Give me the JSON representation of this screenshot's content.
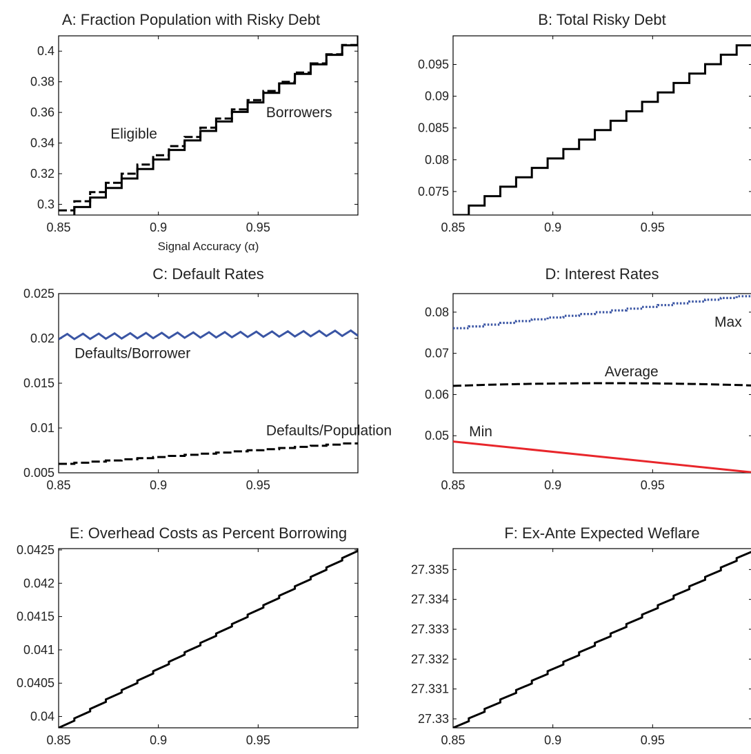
{
  "chart_data": [
    {
      "id": "A",
      "type": "line",
      "title": "A: Fraction Population with Risky Debt",
      "xlabel": "Signal Accuracy (α)",
      "ylabel": "",
      "xlim": [
        0.85,
        1.0
      ],
      "ylim": [
        0.293,
        0.41
      ],
      "xticks": [
        0.85,
        0.9,
        0.95
      ],
      "xtick_labels": [
        "0.85",
        "0.9",
        "0.95"
      ],
      "yticks": [
        0.3,
        0.32,
        0.34,
        0.36,
        0.38,
        0.4
      ],
      "ytick_labels": [
        "0.3",
        "0.32",
        "0.34",
        "0.36",
        "0.38",
        "0.4"
      ],
      "grid": false,
      "series": [
        {
          "name": "Eligible",
          "style": "dashed",
          "color": "#000000",
          "x": [
            0.85,
            1.0
          ],
          "y": [
            0.296,
            0.41
          ],
          "steps": 19
        },
        {
          "name": "Borrowers",
          "style": "solid",
          "color": "#000000",
          "x": [
            0.85,
            1.0
          ],
          "y": [
            0.292,
            0.41
          ],
          "steps": 19
        }
      ],
      "annotations": [
        {
          "text": "Eligible",
          "x": 0.876,
          "y": 0.343
        },
        {
          "text": "Borrowers",
          "x": 0.954,
          "y": 0.357
        }
      ]
    },
    {
      "id": "B",
      "type": "line",
      "title": "B: Total Risky Debt",
      "xlabel": "",
      "ylabel": "",
      "xlim": [
        0.85,
        1.0
      ],
      "ylim": [
        0.0713,
        0.0995
      ],
      "xticks": [
        0.85,
        0.9,
        0.95
      ],
      "xtick_labels": [
        "0.85",
        "0.9",
        "0.95"
      ],
      "yticks": [
        0.075,
        0.08,
        0.085,
        0.09,
        0.095
      ],
      "ytick_labels": [
        "0.075",
        "0.08",
        "0.085",
        "0.09",
        "0.095"
      ],
      "grid": false,
      "series": [
        {
          "name": "",
          "style": "solid",
          "color": "#000000",
          "x": [
            0.85,
            1.0
          ],
          "y": [
            0.0713,
            0.0995
          ],
          "steps": 19
        }
      ],
      "annotations": []
    },
    {
      "id": "C",
      "type": "line",
      "title": "C: Default Rates",
      "xlabel": "",
      "ylabel": "",
      "xlim": [
        0.85,
        1.0
      ],
      "ylim": [
        0.005,
        0.025
      ],
      "xticks": [
        0.85,
        0.9,
        0.95
      ],
      "xtick_labels": [
        "0.85",
        "0.9",
        "0.95"
      ],
      "yticks": [
        0.005,
        0.01,
        0.015,
        0.02,
        0.025
      ],
      "ytick_labels": [
        "0.005",
        "0.01",
        "0.015",
        "0.02",
        "0.025"
      ],
      "grid": false,
      "series": [
        {
          "name": "Defaults/Borrower",
          "style": "solid",
          "color": "#3a55a4",
          "x": [
            0.85,
            1.0
          ],
          "y": [
            0.0202,
            0.0206
          ],
          "sawtooth_amplitude": 0.0006,
          "steps": 19
        },
        {
          "name": "Defaults/Population",
          "style": "dashed",
          "color": "#000000",
          "x": [
            0.85,
            1.0
          ],
          "y": [
            0.006,
            0.0084
          ],
          "steps": 19
        }
      ],
      "annotations": [
        {
          "text": "Defaults/Borrower",
          "x": 0.858,
          "y": 0.0178
        },
        {
          "text": "Defaults/Population",
          "x": 0.954,
          "y": 0.0092
        }
      ]
    },
    {
      "id": "D",
      "type": "line",
      "title": "D: Interest Rates",
      "xlabel": "",
      "ylabel": "",
      "xlim": [
        0.85,
        1.0
      ],
      "ylim": [
        0.041,
        0.0845
      ],
      "xticks": [
        0.85,
        0.9,
        0.95
      ],
      "xtick_labels": [
        "0.85",
        "0.9",
        "0.95"
      ],
      "yticks": [
        0.05,
        0.06,
        0.07,
        0.08
      ],
      "ytick_labels": [
        "0.05",
        "0.06",
        "0.07",
        "0.08"
      ],
      "grid": false,
      "series": [
        {
          "name": "Max",
          "style": "dotted",
          "color": "#3a55a4",
          "x": [
            0.85,
            1.0
          ],
          "y": [
            0.0761,
            0.0843
          ],
          "steps": 19
        },
        {
          "name": "Average",
          "style": "dashed",
          "color": "#000000",
          "x": [
            0.85,
            1.0
          ],
          "y": [
            0.0621,
            0.0622
          ],
          "bump": 0.0006
        },
        {
          "name": "Min",
          "style": "solid",
          "color": "#e8262b",
          "x": [
            0.85,
            1.0
          ],
          "y": [
            0.0486,
            0.0411
          ]
        }
      ],
      "annotations": [
        {
          "text": "Max",
          "x": 0.981,
          "y": 0.0765
        },
        {
          "text": "Average",
          "x": 0.926,
          "y": 0.0644
        },
        {
          "text": "Min",
          "x": 0.858,
          "y": 0.0499
        }
      ]
    },
    {
      "id": "E",
      "type": "line",
      "title": "E: Overhead Costs as Percent Borrowing",
      "xlabel": "",
      "ylabel": "",
      "xlim": [
        0.85,
        1.0
      ],
      "ylim": [
        0.03983,
        0.04252
      ],
      "xticks": [
        0.85,
        0.9,
        0.95
      ],
      "xtick_labels": [
        "0.85",
        "0.9",
        "0.95"
      ],
      "yticks": [
        0.04,
        0.0405,
        0.041,
        0.0415,
        0.042,
        0.0425
      ],
      "ytick_labels": [
        "0.04",
        "0.0405",
        "0.041",
        "0.0415",
        "0.042",
        "0.0425"
      ],
      "grid": false,
      "series": [
        {
          "name": "",
          "style": "solid",
          "color": "#000000",
          "x": [
            0.85,
            1.0
          ],
          "y": [
            0.03983,
            0.04252
          ],
          "steps": 19,
          "step_fraction": 0.25
        }
      ],
      "annotations": []
    },
    {
      "id": "F",
      "type": "line",
      "title": "F: Ex-Ante Expected Weflare",
      "xlabel": "",
      "ylabel": "",
      "xlim": [
        0.85,
        1.0
      ],
      "ylim": [
        27.3297,
        27.3357
      ],
      "xticks": [
        0.85,
        0.9,
        0.95
      ],
      "xtick_labels": [
        "0.85",
        "0.9",
        "0.95"
      ],
      "yticks": [
        27.33,
        27.331,
        27.332,
        27.333,
        27.334,
        27.335
      ],
      "ytick_labels": [
        "27.33",
        "27.331",
        "27.332",
        "27.333",
        "27.334",
        "27.335"
      ],
      "grid": false,
      "series": [
        {
          "name": "",
          "style": "solid",
          "color": "#000000",
          "x": [
            0.85,
            1.0
          ],
          "y": [
            27.3297,
            27.3357
          ],
          "steps": 19,
          "step_fraction": 0.3
        }
      ],
      "annotations": []
    }
  ]
}
